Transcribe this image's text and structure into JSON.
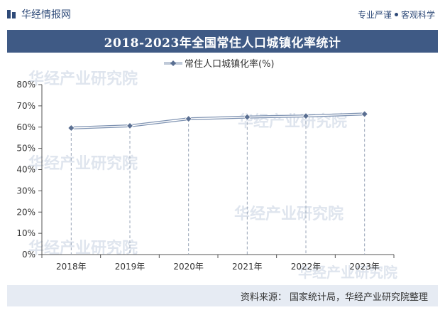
{
  "header": {
    "brand": "华经情报网",
    "tagline_left": "专业严谨",
    "tagline_right": "客观科学"
  },
  "colors": {
    "accent": "#3f5a85",
    "line": "#7f93b2",
    "marker": "#5a6f92"
  },
  "footer": {
    "label": "资料来源：",
    "text": "国家统计局，华经产业研究院整理"
  },
  "watermark": "华经产业研究院",
  "chart_data": {
    "type": "line",
    "title": "2018-2023年全国常住人口城镇化率统计",
    "categories": [
      "2018年",
      "2019年",
      "2020年",
      "2021年",
      "2022年",
      "2023年"
    ],
    "series": [
      {
        "name": "常住人口城镇化率(%)",
        "values": [
          59.58,
          60.6,
          63.89,
          64.72,
          65.22,
          66.16
        ]
      }
    ],
    "yticks": [
      "0%",
      "10%",
      "20%",
      "30%",
      "40%",
      "50%",
      "60%",
      "70%",
      "80%"
    ],
    "ylim": [
      0,
      80
    ],
    "grid": false,
    "legend": "top-center"
  }
}
